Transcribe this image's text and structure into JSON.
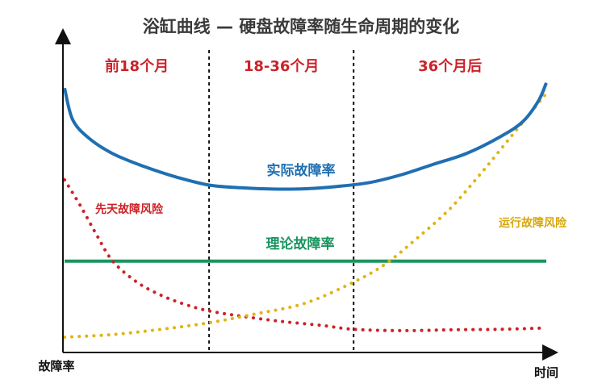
{
  "chart_data": {
    "type": "line",
    "title": "浴缸曲线 — 硬盘故障率随生命周期的变化",
    "xlabel": "时间",
    "ylabel": "故障率",
    "xlim": [
      0,
      60
    ],
    "ylim": [
      0,
      100
    ],
    "phase_boundaries": [
      18,
      36
    ],
    "phases": [
      {
        "label": "前18个月",
        "start": 0,
        "end": 18
      },
      {
        "label": "18-36个月",
        "start": 18,
        "end": 36
      },
      {
        "label": "36个月后",
        "start": 36,
        "end": 60
      }
    ],
    "series": [
      {
        "name": "实际故障率",
        "color": "#1f6fb2",
        "style": "solid",
        "x": [
          0,
          1,
          3,
          6,
          10,
          14,
          18,
          22,
          26,
          30,
          34,
          38,
          42,
          46,
          50,
          54,
          57,
          59,
          60
        ],
        "y": [
          95,
          83,
          76,
          70,
          65,
          61,
          58,
          57,
          56.5,
          56.6,
          57.5,
          59,
          62,
          66,
          70,
          76,
          82,
          90,
          97
        ]
      },
      {
        "name": "理论故障率",
        "color": "#1a9460",
        "style": "solid",
        "x": [
          0,
          60
        ],
        "y": [
          29,
          29
        ]
      },
      {
        "name": "先天故障风险",
        "color": "#cc2228",
        "style": "dotted",
        "x": [
          0,
          2,
          4,
          6,
          9,
          12,
          15,
          18,
          22,
          27,
          32,
          36,
          42,
          48,
          54,
          60
        ],
        "y": [
          60,
          50,
          39,
          29,
          21,
          16,
          12.5,
          10,
          8,
          6,
          4.5,
          3,
          2.5,
          2.8,
          3,
          3.5
        ]
      },
      {
        "name": "运行故障风险",
        "color": "#e0b415",
        "style": "dotted",
        "x": [
          0,
          6,
          12,
          18,
          24,
          30,
          36,
          40,
          44,
          48,
          52,
          56,
          60
        ],
        "y": [
          0,
          1,
          3,
          5.5,
          9,
          13,
          21,
          28,
          38,
          49,
          63,
          78,
          93
        ]
      }
    ],
    "legend": "inline"
  }
}
